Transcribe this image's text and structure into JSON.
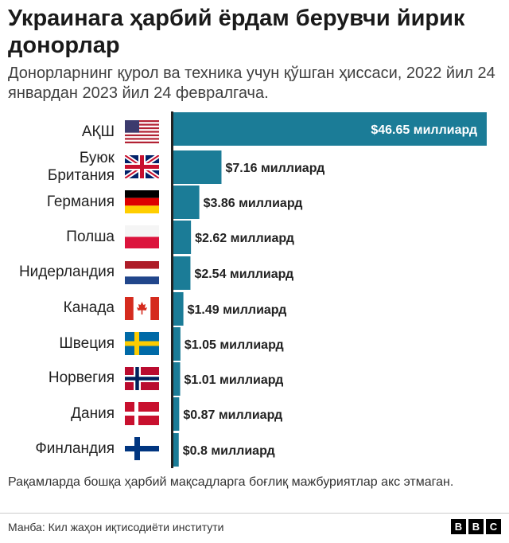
{
  "title": "Украинага ҳарбий ёрдам берувчи йирик донорлар",
  "subtitle": "Донорларнинг қурол ва техника учун қўшган ҳиссаси, 2022 йил 24 январдан 2023 йил 24 февралгача.",
  "footnote": "Рақамларда бошқа ҳарбий мақсадларга боғлиқ  мажбуриятлар акс этмаган.",
  "source": "Манба: Кил жаҳон иқтисодиёти институти",
  "logo": [
    "B",
    "B",
    "C"
  ],
  "colors": {
    "bar": "#1b7c97",
    "text_dark": "#222222",
    "text_light": "#ffffff"
  },
  "chart_data": {
    "type": "bar",
    "orientation": "horizontal",
    "title": "Украинага ҳарбий ёрдам берувчи йирик донорлар",
    "unit": "миллиард долл.",
    "categories": [
      "АҚШ",
      "Буюк Британия",
      "Германия",
      "Полша",
      "Нидерландия",
      "Канада",
      "Швеция",
      "Норвегия",
      "Дания",
      "Финландия"
    ],
    "values": [
      46.65,
      7.16,
      3.86,
      2.62,
      2.54,
      1.49,
      1.05,
      1.01,
      0.87,
      0.8
    ],
    "value_labels": [
      "$46.65 миллиард",
      "$7.16 миллиард",
      "$3.86 миллиард",
      "$2.62 миллиард",
      "$2.54 миллиард",
      "$1.49 миллиард",
      "$1.05 миллиард",
      "$1.01 миллиард",
      "$0.87 миллиард",
      "$0.8 миллиард"
    ],
    "flags": [
      "us-flag-icon",
      "uk-flag-icon",
      "germany-flag-icon",
      "poland-flag-icon",
      "netherlands-flag-icon",
      "canada-flag-icon",
      "sweden-flag-icon",
      "norway-flag-icon",
      "denmark-flag-icon",
      "finland-flag-icon"
    ],
    "xlim": [
      0,
      46.65
    ],
    "grid": false,
    "legend": "none"
  }
}
